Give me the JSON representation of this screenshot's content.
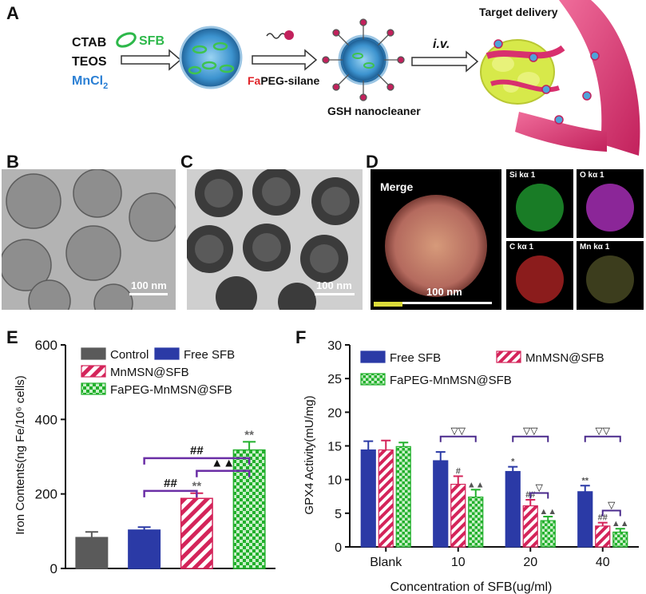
{
  "panels": {
    "a": "A",
    "b": "B",
    "c": "C",
    "d": "D",
    "e": "E",
    "f": "F"
  },
  "schematic": {
    "reagents": [
      "CTAB",
      "TEOS"
    ],
    "mncl_base": "MnCl",
    "mncl_sub": "2",
    "sfb": "SFB",
    "fa": "Fa",
    "peg": "PEG-silane",
    "gsh": "GSH nanocleaner",
    "iv": "i.v.",
    "target": "Target delivery",
    "colors": {
      "sfb": "#2db84a",
      "mncl": "#2a7fd4",
      "fa": "#e0262b",
      "vessel": "#d8306e",
      "nano": "#4fa3d9"
    }
  },
  "tem": {
    "b_scale": "100 nm",
    "c_scale": "100 nm",
    "merge": "Merge",
    "merge_scale": "100 nm",
    "maps": [
      "Si kα 1",
      "O kα 1",
      "C kα 1",
      "Mn kα 1"
    ]
  },
  "chart_data": [
    {
      "type": "bar",
      "panel": "E",
      "ylabel": "Iron Contents(ng Fe/10⁶ cells)",
      "ylim": [
        0,
        600
      ],
      "yticks": [
        0,
        200,
        400,
        600
      ],
      "categories": [
        "Control",
        "Free SFB",
        "MnMSN@SFB",
        "FaPEG-MnMSN@SFB"
      ],
      "values": [
        83,
        103,
        188,
        318
      ],
      "errors": [
        15,
        8,
        14,
        22
      ],
      "colors": [
        "#5a5a5a",
        "#2b3aa6",
        "#d4245a",
        "#22b02c"
      ],
      "patterns": [
        "solid",
        "solid",
        "hatch",
        "check"
      ],
      "legend": [
        "Control",
        "Free SFB",
        "MnMSN@SFB",
        "FaPEG-MnMSN@SFB"
      ],
      "legend_position": "top-left",
      "annotations": [
        {
          "bar": 2,
          "text": "**"
        },
        {
          "bar": 3,
          "text": "**"
        },
        {
          "from": 1,
          "to": 2,
          "text": "##"
        },
        {
          "from": 2,
          "to": 3,
          "text": "▲▲"
        },
        {
          "from": 1,
          "to": 3,
          "text": "##"
        }
      ]
    },
    {
      "type": "bar",
      "panel": "F",
      "ylabel": "GPX4 Activity(mU/mg)",
      "xlabel": "Concentration of SFB(ug/ml)",
      "ylim": [
        0,
        30
      ],
      "yticks": [
        0,
        5,
        10,
        15,
        20,
        25,
        30
      ],
      "categories": [
        "Blank",
        "10",
        "20",
        "40"
      ],
      "series": [
        {
          "name": "Free SFB",
          "values": [
            14.4,
            12.8,
            11.2,
            8.2
          ],
          "errors": [
            1.3,
            1.3,
            0.7,
            0.9
          ],
          "color": "#2b3aa6",
          "pattern": "solid"
        },
        {
          "name": "MnMSN@SFB",
          "values": [
            14.4,
            9.3,
            6.1,
            3.1
          ],
          "errors": [
            1.4,
            1.2,
            0.9,
            0.5
          ],
          "color": "#d4245a",
          "pattern": "hatch"
        },
        {
          "name": "FaPEG-MnMSN@SFB",
          "values": [
            14.9,
            7.4,
            3.9,
            2.2
          ],
          "errors": [
            0.6,
            1.1,
            0.6,
            0.5
          ],
          "color": "#22b02c",
          "pattern": "check"
        }
      ],
      "legend_position": "top",
      "annotations": [
        {
          "group": 1,
          "series": 1,
          "text": "#"
        },
        {
          "group": 1,
          "series": 2,
          "text": "▲▲"
        },
        {
          "group": 2,
          "series": 0,
          "text": "*"
        },
        {
          "group": 2,
          "series": 1,
          "text": "##"
        },
        {
          "group": 2,
          "series": 2,
          "text": "▲▲"
        },
        {
          "group": 3,
          "series": 0,
          "text": "**"
        },
        {
          "group": 3,
          "series": 1,
          "text": "##"
        },
        {
          "group": 3,
          "series": 2,
          "text": "▲▲"
        },
        {
          "group": 1,
          "bracket": [
            0,
            2
          ],
          "text": "▽▽"
        },
        {
          "group": 2,
          "bracket": [
            0,
            2
          ],
          "text": "▽▽"
        },
        {
          "group": 3,
          "bracket": [
            0,
            2
          ],
          "text": "▽▽"
        },
        {
          "group": 2,
          "bracket": [
            1,
            2
          ],
          "text": "▽"
        },
        {
          "group": 3,
          "bracket": [
            1,
            2
          ],
          "text": "▽"
        }
      ]
    }
  ]
}
